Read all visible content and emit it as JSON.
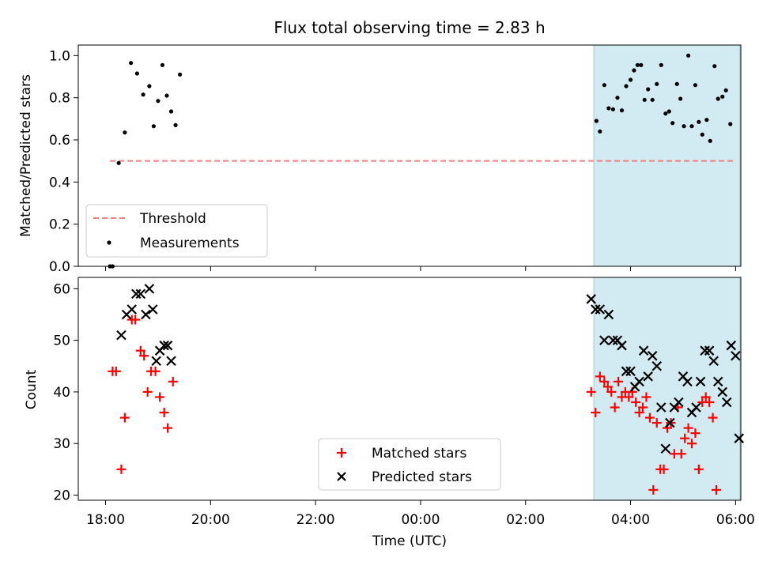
{
  "figure_title": "Flux total observing time = 2.83 h",
  "colors": {
    "threshold": "#f08080",
    "measurements": "#000000",
    "matched": "#ff0000",
    "predicted": "#000000",
    "highlight": "#add8e6"
  },
  "chart_data": [
    {
      "type": "scatter",
      "ylabel": "Matched/Predicted stars",
      "xlabel": "",
      "ylim": [
        0,
        1.05
      ],
      "yticks": [
        0.0,
        0.2,
        0.4,
        0.6,
        0.8,
        1.0
      ],
      "ytick_labels": [
        "0.0",
        "0.2",
        "0.4",
        "0.6",
        "0.8",
        "1.0"
      ],
      "highlight_span": [
        "03:18",
        "06:05"
      ],
      "threshold": {
        "name": "Threshold",
        "value": 0.5,
        "x_start": "18:05",
        "x_end": "06:00"
      },
      "legend": {
        "placement": "lower left",
        "entries": [
          "Threshold",
          "Measurements"
        ]
      },
      "series": [
        {
          "name": "Measurements",
          "points": [
            [
              "18:05",
              0.0
            ],
            [
              "18:08",
              0.0
            ],
            [
              "18:15",
              0.49
            ],
            [
              "18:22",
              0.635
            ],
            [
              "18:29",
              0.965
            ],
            [
              "18:36",
              0.915
            ],
            [
              "18:43",
              0.815
            ],
            [
              "18:50",
              0.855
            ],
            [
              "18:55",
              0.665
            ],
            [
              "19:00",
              0.785
            ],
            [
              "19:05",
              0.955
            ],
            [
              "19:10",
              0.81
            ],
            [
              "19:15",
              0.735
            ],
            [
              "19:20",
              0.67
            ],
            [
              "19:25",
              0.91
            ],
            [
              "03:21",
              0.69
            ],
            [
              "03:25",
              0.64
            ],
            [
              "03:30",
              0.86
            ],
            [
              "03:35",
              0.75
            ],
            [
              "03:40",
              0.745
            ],
            [
              "03:45",
              0.8
            ],
            [
              "03:50",
              0.74
            ],
            [
              "03:55",
              0.855
            ],
            [
              "04:00",
              0.885
            ],
            [
              "04:04",
              0.93
            ],
            [
              "04:08",
              0.955
            ],
            [
              "04:12",
              0.955
            ],
            [
              "04:16",
              0.79
            ],
            [
              "04:20",
              0.84
            ],
            [
              "04:25",
              0.79
            ],
            [
              "04:30",
              0.865
            ],
            [
              "04:35",
              0.955
            ],
            [
              "04:40",
              0.725
            ],
            [
              "04:44",
              0.735
            ],
            [
              "04:48",
              0.68
            ],
            [
              "04:53",
              0.865
            ],
            [
              "04:57",
              0.795
            ],
            [
              "05:01",
              0.665
            ],
            [
              "05:06",
              1.0
            ],
            [
              "05:10",
              0.665
            ],
            [
              "05:14",
              0.86
            ],
            [
              "05:18",
              0.685
            ],
            [
              "05:22",
              0.625
            ],
            [
              "05:27",
              0.695
            ],
            [
              "05:31",
              0.595
            ],
            [
              "05:36",
              0.95
            ],
            [
              "05:40",
              0.795
            ],
            [
              "05:45",
              0.805
            ],
            [
              "05:49",
              0.835
            ],
            [
              "05:54",
              0.675
            ]
          ]
        }
      ]
    },
    {
      "type": "scatter",
      "ylabel": "Count",
      "xlabel": "Time (UTC)",
      "ylim": [
        19,
        62.2
      ],
      "yticks": [
        20,
        30,
        40,
        50,
        60
      ],
      "ytick_labels": [
        "20",
        "30",
        "40",
        "50",
        "60"
      ],
      "xticks": [
        "18:00",
        "20:00",
        "22:00",
        "00:00",
        "02:00",
        "04:00",
        "06:00"
      ],
      "xlim_hours": [
        17.48,
        30.1
      ],
      "highlight_span": [
        "03:18",
        "06:05"
      ],
      "legend": {
        "placement": "lower center",
        "entries": [
          "Matched stars",
          "Predicted stars"
        ]
      },
      "series": [
        {
          "name": "Matched stars",
          "marker": "+",
          "points": [
            [
              "18:08",
              44
            ],
            [
              "18:12",
              44
            ],
            [
              "18:18",
              25
            ],
            [
              "18:22",
              35
            ],
            [
              "18:30",
              54
            ],
            [
              "18:34",
              54
            ],
            [
              "18:40",
              48
            ],
            [
              "18:44",
              47
            ],
            [
              "18:48",
              40
            ],
            [
              "18:52",
              44
            ],
            [
              "18:57",
              44
            ],
            [
              "19:02",
              39
            ],
            [
              "19:07",
              36
            ],
            [
              "19:11",
              33
            ],
            [
              "19:17",
              42
            ],
            [
              "03:15",
              40
            ],
            [
              "03:20",
              36
            ],
            [
              "03:25",
              43
            ],
            [
              "03:30",
              42
            ],
            [
              "03:34",
              41
            ],
            [
              "03:38",
              40
            ],
            [
              "03:42",
              37
            ],
            [
              "03:46",
              42
            ],
            [
              "03:50",
              39
            ],
            [
              "03:54",
              40
            ],
            [
              "03:58",
              39
            ],
            [
              "04:02",
              40
            ],
            [
              "04:06",
              38
            ],
            [
              "04:10",
              36
            ],
            [
              "04:14",
              37
            ],
            [
              "04:18",
              39
            ],
            [
              "04:22",
              35
            ],
            [
              "04:26",
              21
            ],
            [
              "04:30",
              34
            ],
            [
              "04:34",
              25
            ],
            [
              "04:38",
              25
            ],
            [
              "04:42",
              33
            ],
            [
              "04:46",
              34
            ],
            [
              "04:50",
              28
            ],
            [
              "04:54",
              37
            ],
            [
              "04:58",
              28
            ],
            [
              "05:02",
              31
            ],
            [
              "05:06",
              33
            ],
            [
              "05:10",
              30
            ],
            [
              "05:14",
              32
            ],
            [
              "05:18",
              25
            ],
            [
              "05:22",
              38
            ],
            [
              "05:26",
              39
            ],
            [
              "05:30",
              38
            ],
            [
              "05:34",
              35
            ],
            [
              "05:38",
              21
            ]
          ]
        },
        {
          "name": "Predicted stars",
          "marker": "x",
          "points": [
            [
              "18:18",
              51
            ],
            [
              "18:24",
              55
            ],
            [
              "18:30",
              56
            ],
            [
              "18:35",
              59
            ],
            [
              "18:40",
              59
            ],
            [
              "18:46",
              55
            ],
            [
              "18:50",
              60
            ],
            [
              "18:54",
              56
            ],
            [
              "18:58",
              46
            ],
            [
              "19:02",
              48
            ],
            [
              "19:07",
              49
            ],
            [
              "19:11",
              49
            ],
            [
              "19:15",
              46
            ],
            [
              "03:15",
              58
            ],
            [
              "03:20",
              56
            ],
            [
              "03:25",
              56
            ],
            [
              "03:30",
              50
            ],
            [
              "03:35",
              55
            ],
            [
              "03:40",
              50
            ],
            [
              "03:45",
              50
            ],
            [
              "03:50",
              49
            ],
            [
              "03:55",
              44
            ],
            [
              "04:00",
              44
            ],
            [
              "04:05",
              41
            ],
            [
              "04:10",
              42
            ],
            [
              "04:15",
              48
            ],
            [
              "04:20",
              43
            ],
            [
              "04:25",
              47
            ],
            [
              "04:30",
              45
            ],
            [
              "04:35",
              37
            ],
            [
              "04:40",
              29
            ],
            [
              "04:45",
              34
            ],
            [
              "04:50",
              37
            ],
            [
              "04:55",
              38
            ],
            [
              "05:00",
              43
            ],
            [
              "05:05",
              42
            ],
            [
              "05:10",
              36
            ],
            [
              "05:15",
              37
            ],
            [
              "05:20",
              42
            ],
            [
              "05:25",
              48
            ],
            [
              "05:30",
              48
            ],
            [
              "05:35",
              46
            ],
            [
              "05:40",
              42
            ],
            [
              "05:45",
              40
            ],
            [
              "05:50",
              38
            ],
            [
              "05:55",
              49
            ],
            [
              "06:00",
              47
            ],
            [
              "06:04",
              31
            ]
          ]
        }
      ]
    }
  ]
}
